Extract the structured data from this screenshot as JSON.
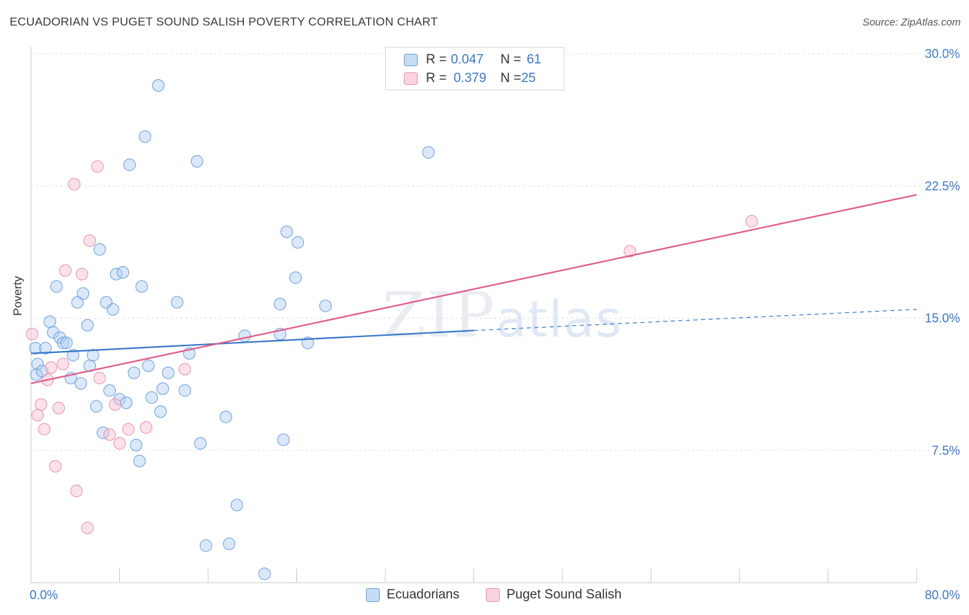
{
  "title": "ECUADORIAN VS PUGET SOUND SALISH POVERTY CORRELATION CHART",
  "source": "Source: ZipAtlas.com",
  "legend": {
    "row1": {
      "r_label": "R = ",
      "r_value": "0.047",
      "n_label": "N = ",
      "n_value": "61"
    },
    "row2": {
      "r_label": "R = ",
      "r_value": "0.379",
      "n_label": "N = ",
      "n_value": "25"
    }
  },
  "bottom_legend": {
    "series1": "Ecuadorians",
    "series2": "Puget Sound Salish"
  },
  "watermark": {
    "zip": "ZIP",
    "atlas": "atlas"
  },
  "colors": {
    "blue": "#3a78c9",
    "blue_fill": "#aecdf2",
    "pink": "#e05a8a",
    "pink_fill": "#f7bfd1",
    "tick_text": "#3a78c9",
    "grid": "#dddddd"
  },
  "chart_data": {
    "type": "scatter",
    "title": "ECUADORIAN VS PUGET SOUND SALISH POVERTY CORRELATION CHART",
    "xlabel": "",
    "ylabel": "Poverty",
    "xlim": [
      0,
      80
    ],
    "ylim": [
      0,
      30
    ],
    "x_ticks": [
      "0.0%",
      "80.0%"
    ],
    "y_ticks": [
      {
        "value": 7.5,
        "label": "7.5%"
      },
      {
        "value": 15,
        "label": "15.0%"
      },
      {
        "value": 22.5,
        "label": "22.5%"
      },
      {
        "value": 30,
        "label": "30.0%"
      }
    ],
    "grid": "horizontal dashed",
    "legend_position": "top-center",
    "series": [
      {
        "name": "Ecuadorians",
        "R": 0.047,
        "N": 61,
        "trend": {
          "x0": 0,
          "y0": 13.0,
          "x1": 40,
          "y1": 14.3,
          "dash_x1": 80,
          "dash_y1": 15.5
        },
        "points": [
          [
            0.4,
            13.3
          ],
          [
            0.6,
            12.4
          ],
          [
            0.5,
            11.8
          ],
          [
            1.0,
            12.0
          ],
          [
            1.3,
            13.3
          ],
          [
            1.7,
            14.8
          ],
          [
            2.0,
            14.2
          ],
          [
            2.3,
            16.8
          ],
          [
            2.6,
            13.9
          ],
          [
            2.9,
            13.6
          ],
          [
            3.2,
            13.6
          ],
          [
            3.6,
            11.6
          ],
          [
            3.8,
            12.9
          ],
          [
            4.2,
            15.9
          ],
          [
            4.5,
            11.3
          ],
          [
            4.7,
            16.4
          ],
          [
            5.1,
            14.6
          ],
          [
            5.3,
            12.3
          ],
          [
            5.6,
            12.9
          ],
          [
            5.9,
            10.0
          ],
          [
            6.2,
            18.9
          ],
          [
            6.5,
            8.5
          ],
          [
            6.8,
            15.9
          ],
          [
            7.1,
            10.9
          ],
          [
            7.4,
            15.5
          ],
          [
            7.7,
            17.5
          ],
          [
            8.0,
            10.4
          ],
          [
            8.3,
            17.6
          ],
          [
            8.6,
            10.2
          ],
          [
            8.9,
            23.7
          ],
          [
            9.3,
            11.9
          ],
          [
            9.5,
            7.8
          ],
          [
            9.8,
            6.9
          ],
          [
            10.0,
            16.8
          ],
          [
            10.3,
            25.3
          ],
          [
            10.6,
            12.3
          ],
          [
            10.9,
            10.5
          ],
          [
            11.5,
            28.2
          ],
          [
            11.7,
            9.7
          ],
          [
            11.9,
            11.0
          ],
          [
            12.4,
            11.9
          ],
          [
            13.2,
            15.9
          ],
          [
            13.9,
            10.9
          ],
          [
            14.3,
            13.0
          ],
          [
            15.0,
            23.9
          ],
          [
            15.3,
            7.9
          ],
          [
            15.8,
            2.1
          ],
          [
            17.6,
            9.4
          ],
          [
            17.9,
            2.2
          ],
          [
            18.6,
            4.4
          ],
          [
            19.3,
            14.0
          ],
          [
            21.1,
            0.5
          ],
          [
            22.5,
            15.8
          ],
          [
            22.5,
            14.1
          ],
          [
            22.8,
            8.1
          ],
          [
            23.1,
            19.9
          ],
          [
            23.9,
            17.3
          ],
          [
            24.1,
            19.3
          ],
          [
            25.0,
            13.6
          ],
          [
            26.6,
            15.7
          ],
          [
            35.9,
            24.4
          ]
        ]
      },
      {
        "name": "Puget Sound Salish",
        "R": 0.379,
        "N": 25,
        "trend": {
          "x0": 0,
          "y0": 11.3,
          "x1": 80,
          "y1": 22.0
        },
        "points": [
          [
            0.1,
            14.1
          ],
          [
            0.6,
            9.5
          ],
          [
            0.9,
            10.1
          ],
          [
            1.2,
            8.7
          ],
          [
            1.5,
            11.5
          ],
          [
            1.8,
            12.2
          ],
          [
            2.2,
            6.6
          ],
          [
            2.5,
            9.9
          ],
          [
            2.9,
            12.4
          ],
          [
            3.1,
            17.7
          ],
          [
            3.9,
            22.6
          ],
          [
            4.1,
            5.2
          ],
          [
            4.6,
            17.5
          ],
          [
            5.1,
            3.1
          ],
          [
            5.3,
            19.4
          ],
          [
            6.0,
            23.6
          ],
          [
            6.2,
            11.6
          ],
          [
            7.1,
            8.4
          ],
          [
            7.6,
            10.1
          ],
          [
            8.0,
            7.9
          ],
          [
            8.8,
            8.7
          ],
          [
            10.4,
            8.8
          ],
          [
            13.9,
            12.1
          ],
          [
            54.1,
            18.8
          ],
          [
            65.1,
            20.5
          ]
        ]
      }
    ]
  }
}
